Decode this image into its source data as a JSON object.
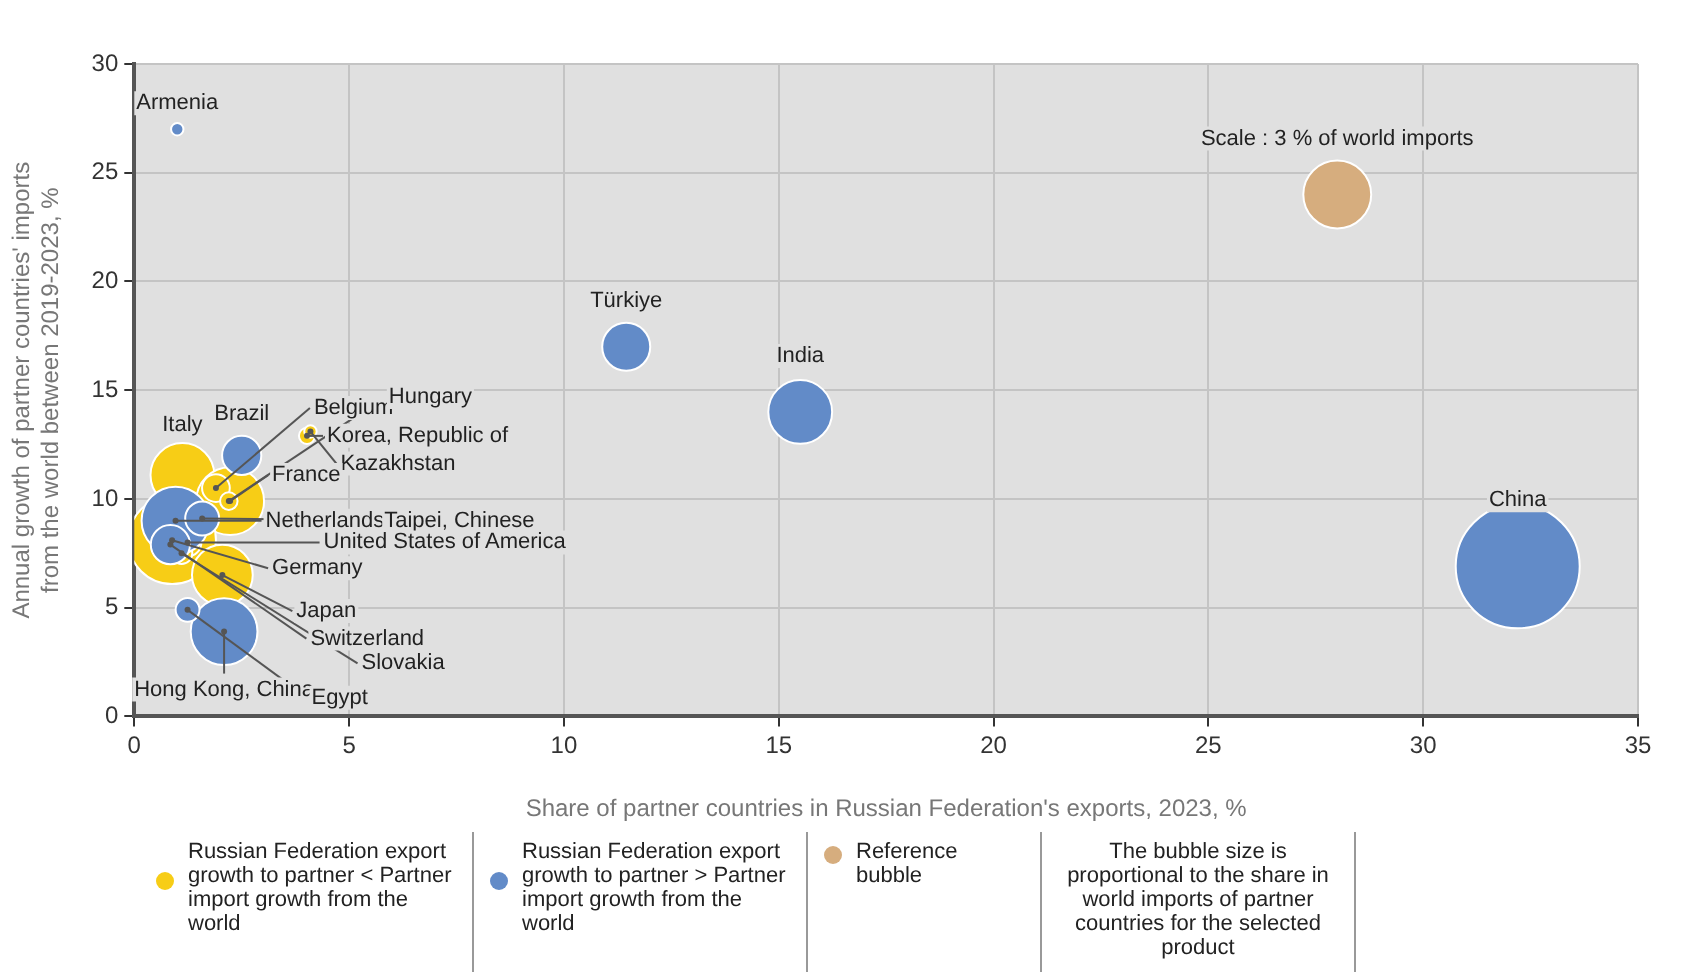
{
  "chart_data": {
    "type": "bubble",
    "xlabel": "Share of partner countries in Russian Federation's exports, 2023, %",
    "ylabel": "Annual growth of partner countries' imports\nfrom the world between 2019-2023, %",
    "xlim": [
      0,
      35
    ],
    "xticks": [
      0,
      5,
      10,
      15,
      20,
      25,
      30,
      35
    ],
    "ylim": [
      0,
      30
    ],
    "yticks": [
      0,
      5,
      10,
      15,
      20,
      25,
      30
    ],
    "grid": true,
    "legend": "bottom",
    "series": [
      {
        "name": "Russian Federation export growth to partner < Partner import growth from the world",
        "color": "#f7cd16",
        "x": [
          1.12,
          2.23,
          0.88,
          1.24,
          2.05,
          1.1,
          1.9,
          2.2,
          4.02,
          4.1
        ],
        "values": [
          11.1,
          9.9,
          8.1,
          8.0,
          6.5,
          7.5,
          10.5,
          9.9,
          12.9,
          13.1
        ],
        "sizes": [
          0.265,
          0.3,
          0.5,
          0.05,
          0.24,
          0.03,
          0.05,
          0.02,
          0.017,
          0.01
        ]
      },
      {
        "name": "Russian Federation export growth to partner > Partner import growth from the world",
        "color": "#628bc8",
        "x": [
          1.0,
          11.45,
          15.5,
          32.2,
          2.5,
          0.96,
          1.58,
          0.84,
          2.09,
          1.24
        ],
        "values": [
          27,
          17,
          14,
          6.9,
          12,
          9.0,
          9.1,
          7.9,
          3.9,
          4.9
        ],
        "sizes": [
          0.01,
          0.15,
          0.265,
          1,
          0.1,
          0.3,
          0.075,
          0.1,
          0.29,
          0.037
        ]
      },
      {
        "name": "Reference bubble",
        "color": "#d6ad7e",
        "x": [
          28
        ],
        "values": [
          24
        ],
        "sizes": [
          0.3
        ]
      }
    ],
    "annotations": [
      {
        "text": "Armenia",
        "x": 1.0,
        "y": 27
      },
      {
        "text": "Türkiye",
        "x": 11.45,
        "y": 17
      },
      {
        "text": "India",
        "x": 15.5,
        "y": 14
      },
      {
        "text": "China",
        "x": 32.2,
        "y": 6.9
      },
      {
        "text": "Scale : 3 % of world imports",
        "x": 28,
        "y": 24
      },
      {
        "text": "Italy",
        "x": 1.12,
        "y": 11.1
      },
      {
        "text": "Brazil",
        "x": 2.5,
        "y": 12
      },
      {
        "text": "Belgium",
        "x": 1.9,
        "y": 10.5
      },
      {
        "text": "Hungary",
        "x": 2.2,
        "y": 9.9
      },
      {
        "text": "Korea, Republic of",
        "x": 4.02,
        "y": 12.9
      },
      {
        "text": "Kazakhstan",
        "x": 4.1,
        "y": 13.1
      },
      {
        "text": "France",
        "x": 2.23,
        "y": 9.9
      },
      {
        "text": "Netherlands",
        "x": 0.96,
        "y": 9.0
      },
      {
        "text": "Taipei, Chinese",
        "x": 1.58,
        "y": 9.1
      },
      {
        "text": "United States of America",
        "x": 1.24,
        "y": 8.0
      },
      {
        "text": "Germany",
        "x": 0.88,
        "y": 8.1
      },
      {
        "text": "Japan",
        "x": 2.05,
        "y": 6.5
      },
      {
        "text": "Switzerland",
        "x": 0.84,
        "y": 7.9
      },
      {
        "text": "Slovakia",
        "x": 1.1,
        "y": 7.5
      },
      {
        "text": "Hong Kong, China",
        "x": 2.09,
        "y": 3.9
      },
      {
        "text": "Egypt",
        "x": 1.24,
        "y": 4.9
      },
      "The bubble size is proportional to the share in world imports of partner countries for the selected product"
    ]
  }
}
